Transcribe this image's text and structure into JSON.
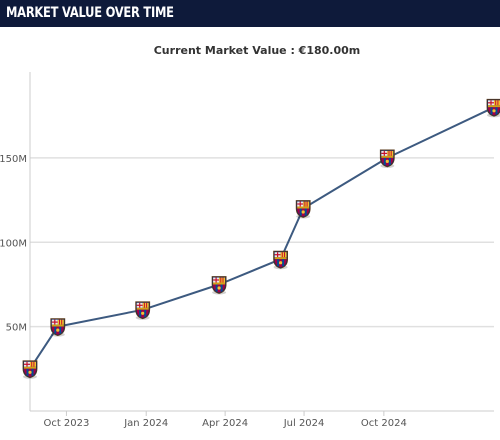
{
  "header": {
    "title": "MARKET VALUE OVER TIME"
  },
  "colors": {
    "header_bg": "#0e1a3a",
    "line": "#3d5a80",
    "grid": "#e0e0e0",
    "axis": "#cccccc"
  },
  "chart_data": {
    "type": "line",
    "title": "",
    "subtitle": "Current Market Value : €180.00m",
    "xlabel": "",
    "ylabel": "",
    "x_type": "date",
    "xlim": [
      "2023-08-20",
      "2025-02-05"
    ],
    "ylim": [
      0,
      195000000
    ],
    "y_ticks": [
      50000000,
      100000000,
      150000000
    ],
    "y_tick_labels": [
      "50M",
      "100M",
      "150M"
    ],
    "x_ticks": [
      "2023-10-01",
      "2024-01-01",
      "2024-04-01",
      "2024-07-01",
      "2024-10-01"
    ],
    "x_tick_labels": [
      "Oct 2023",
      "Jan 2024",
      "Apr 2024",
      "Jul 2024",
      "Oct 2024"
    ],
    "grid": true,
    "legend": "none",
    "marker_icon": "club-crest-icon",
    "series": [
      {
        "points": [
          {
            "x": "2023-08-20",
            "y": 25000000
          },
          {
            "x": "2023-09-21",
            "y": 50000000
          },
          {
            "x": "2023-12-28",
            "y": 60000000
          },
          {
            "x": "2024-03-25",
            "y": 75000000
          },
          {
            "x": "2024-06-04",
            "y": 90000000
          },
          {
            "x": "2024-06-30",
            "y": 120000000
          },
          {
            "x": "2024-10-05",
            "y": 150000000
          },
          {
            "x": "2025-02-05",
            "y": 180000000
          }
        ]
      }
    ]
  }
}
